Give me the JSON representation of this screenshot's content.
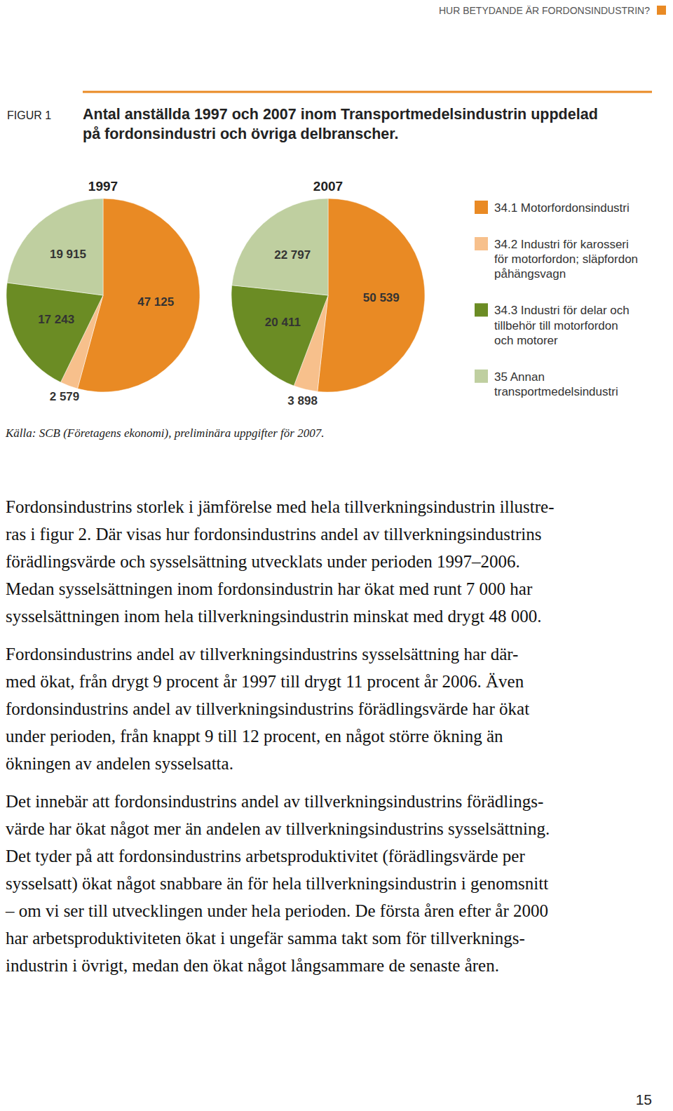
{
  "header": {
    "running_title": "HUR BETYDANDE ÄR FORDONSINDUSTRIN?"
  },
  "figure": {
    "label": "FIGUR 1",
    "source": "Källa: SCB (Företagens ekonomi), preliminära uppgifter för 2007."
  },
  "chart_data": {
    "type": "pie",
    "title": "Antal anställda 1997 och 2007 inom Transportmedelsindustrin uppdelad\npå fordonsindustri och övriga delbranscher.",
    "categories": [
      "34.1 Motorfordonsindustri",
      "34.2 Industri för karosseri\nför motorfordon; släpfordon\npåhängsvagn",
      "34.3 Industri för delar och\ntillbehör till motorfordon\noch motorer",
      "35 Annan\ntransportmedelsindustri"
    ],
    "colors": [
      "#e98a24",
      "#f7c08c",
      "#6b8c24",
      "#bfcfa0"
    ],
    "series": [
      {
        "name": "1997",
        "values": [
          47125,
          2579,
          17243,
          19915
        ],
        "value_labels": [
          "47 125",
          "2 579",
          "17 243",
          "19 915"
        ]
      },
      {
        "name": "2007",
        "values": [
          50539,
          3898,
          20411,
          22797
        ],
        "value_labels": [
          "50 539",
          "3 898",
          "20 411",
          "22 797"
        ]
      }
    ],
    "data_labels": true,
    "legend": "right"
  },
  "body": {
    "paragraphs": [
      {
        "lines": [
          "Fordonsindustrins storlek i jämförelse med hela tillverkningsindustrin illustre-",
          "ras i figur 2. Där visas hur fordonsindustrins andel av tillverkningsindustrins",
          "förädlingsvärde och sysselsättning utvecklats under perioden 1997–2006.",
          "Medan sysselsättningen inom fordonsindustrin har ökat med runt 7 000 har",
          "sysselsättningen inom hela tillverkningsindustrin minskat med drygt 48 000."
        ]
      },
      {
        "lines": [
          "Fordonsindustrins andel av tillverkningsindustrins sysselsättning har där-",
          "med ökat, från drygt 9 procent år 1997 till drygt 11 procent år 2006. Även",
          "fordonsindustrins andel av tillverkningsindustrins förädlingsvärde har ökat",
          "under perioden, från knappt 9 till 12 procent, en något större ökning än",
          "ökningen av andelen sysselsatta."
        ]
      },
      {
        "lines": [
          "Det innebär att fordonsindustrins andel av tillverkningsindustrins förädlings-",
          "värde har ökat något mer än andelen av tillverkningsindustrins sysselsättning.",
          "Det tyder på att fordonsindustrins arbetsproduktivitet (förädlingsvärde per",
          "sysselsatt) ökat något snabbare än för hela tillverkningsindustrin i genomsnitt",
          "– om vi ser till utvecklingen under hela perioden. De första åren efter år 2000",
          "har arbetsproduktiviteten ökat i ungefär samma takt som för tillverknings-",
          "industrin i övrigt, medan den ökat något långsammare de senaste åren."
        ]
      }
    ]
  },
  "page_number": "15"
}
